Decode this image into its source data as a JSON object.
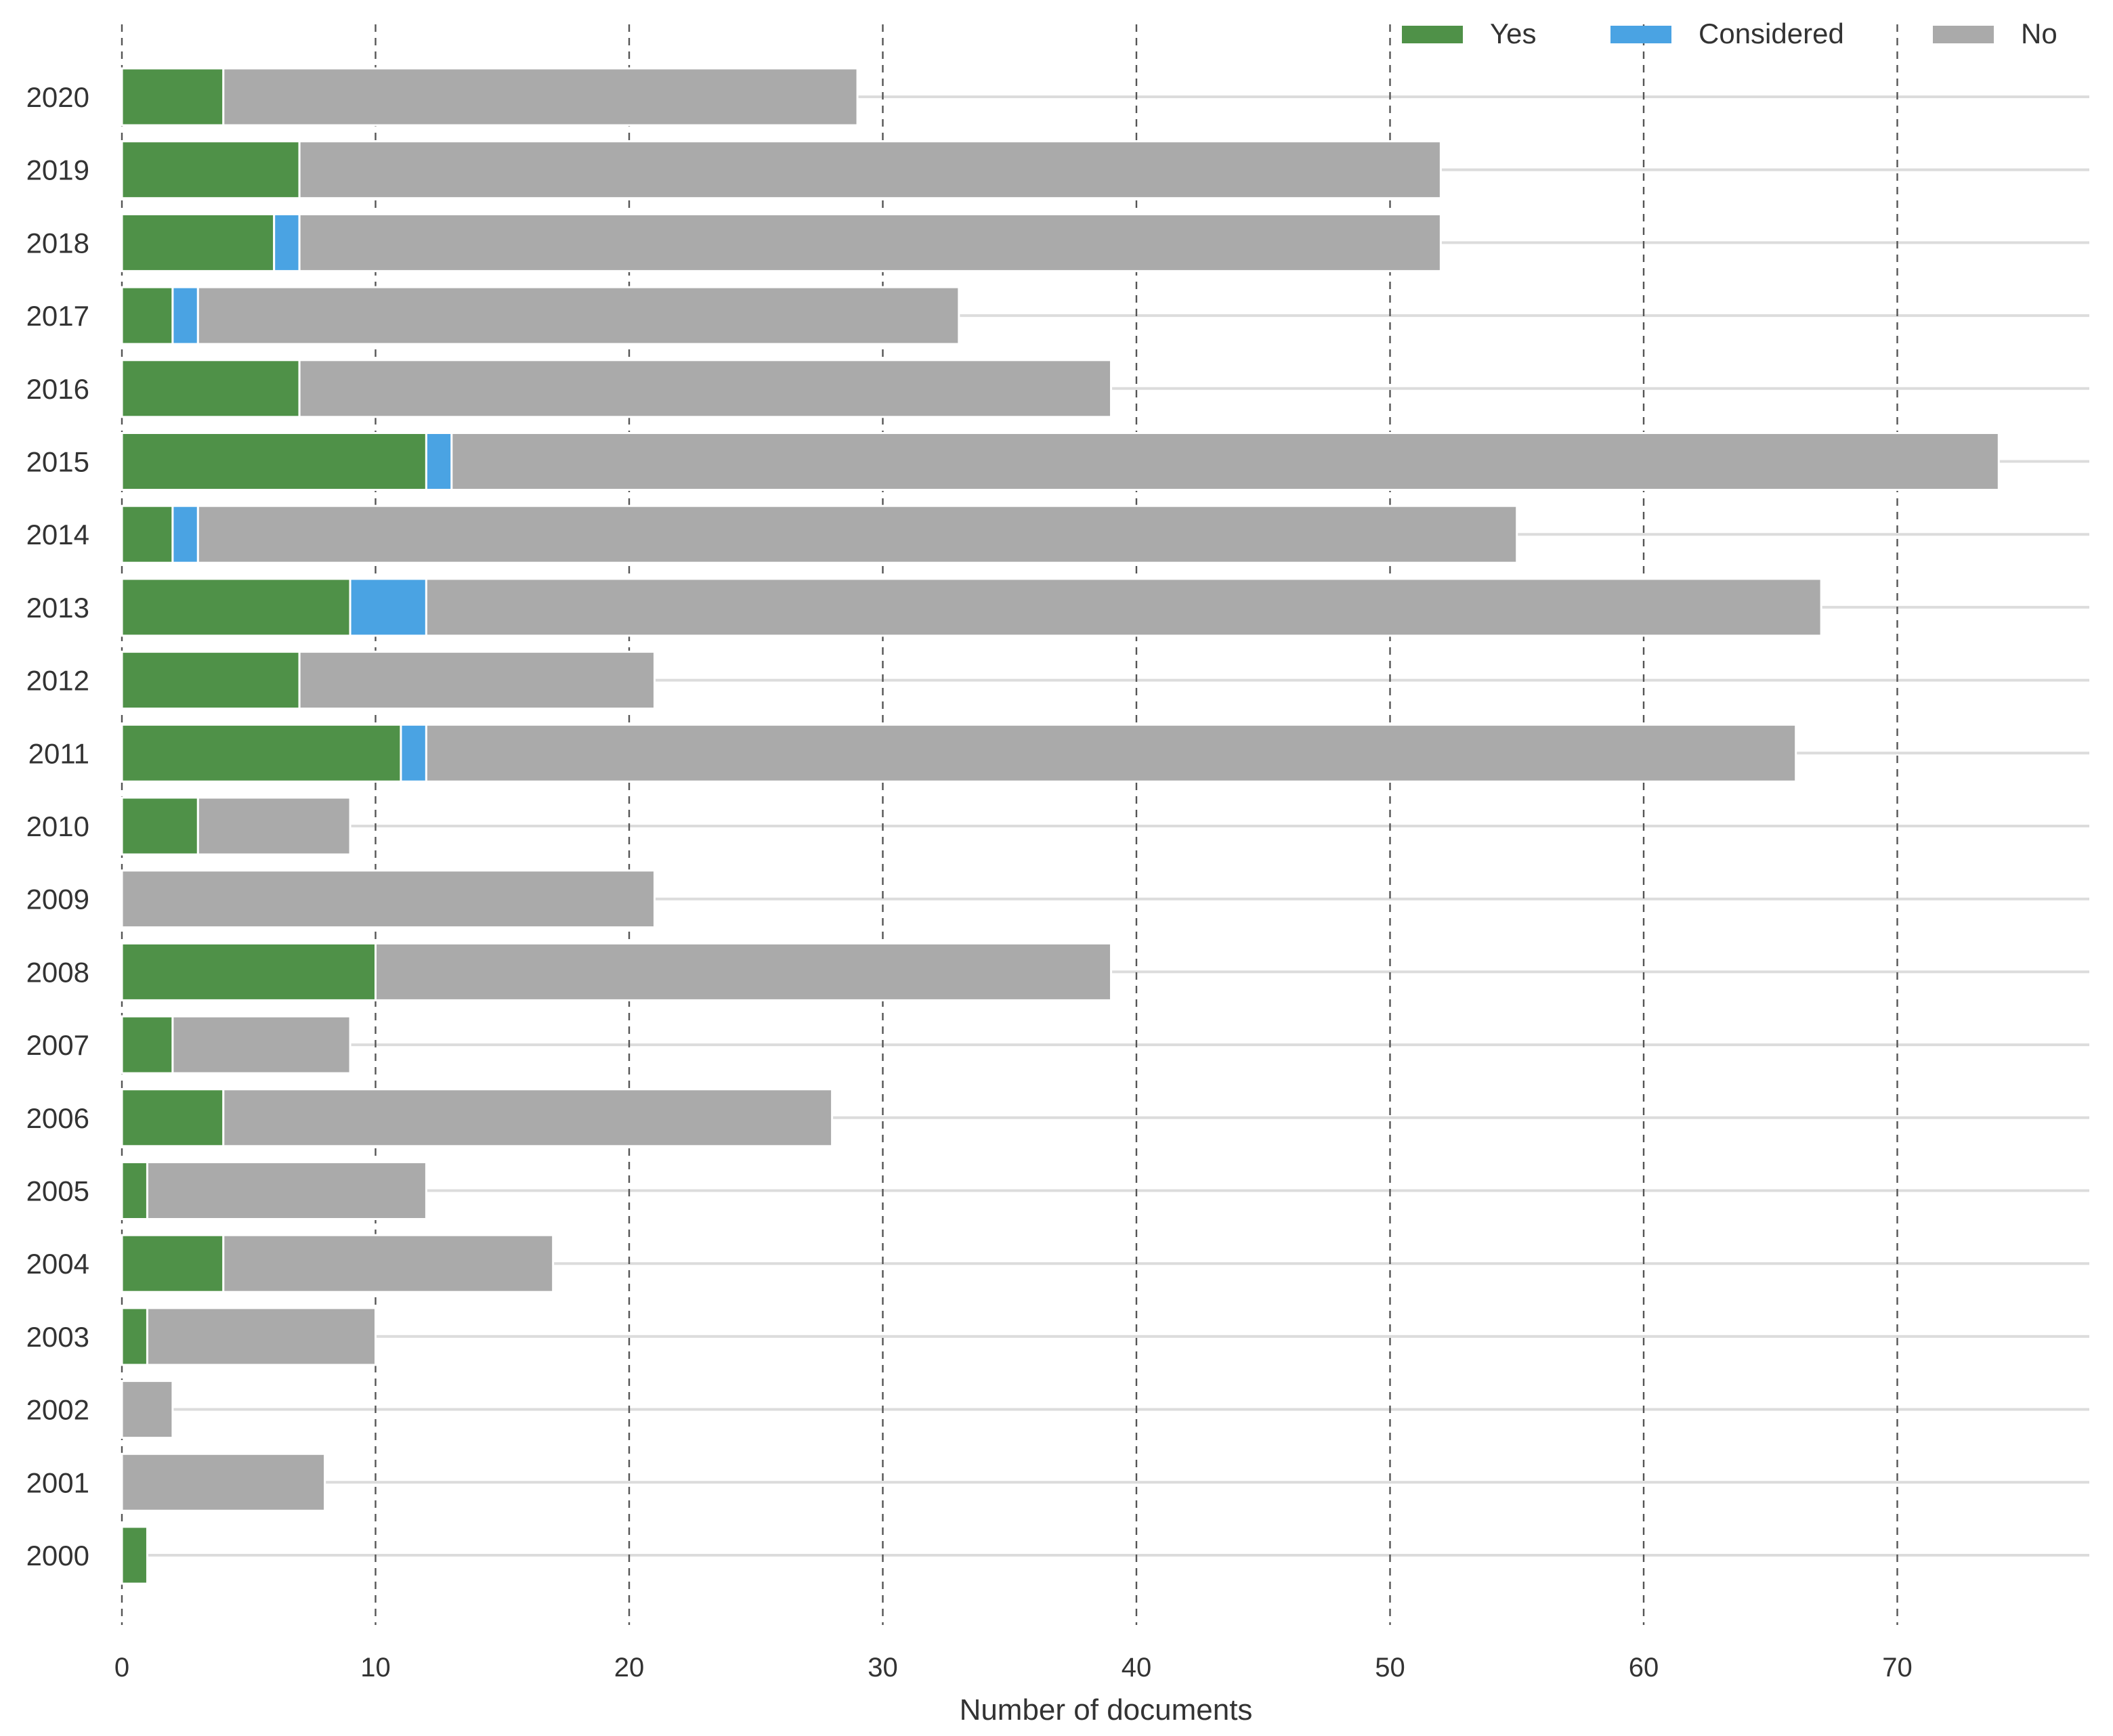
{
  "chart_data": {
    "type": "bar",
    "orientation": "horizontal",
    "stacked": true,
    "title": "",
    "xlabel": "Number of documents",
    "ylabel": "",
    "xlim": [
      0,
      78
    ],
    "xticks": [
      0,
      10,
      20,
      30,
      40,
      50,
      60,
      70
    ],
    "grid": "x-dashed",
    "legend_position": "top-right",
    "categories": [
      "2020",
      "2019",
      "2018",
      "2017",
      "2016",
      "2015",
      "2014",
      "2013",
      "2012",
      "2011",
      "2010",
      "2009",
      "2008",
      "2007",
      "2006",
      "2005",
      "2004",
      "2003",
      "2002",
      "2001",
      "2000"
    ],
    "series": [
      {
        "name": "Yes",
        "color": "#4f9148",
        "values": [
          4,
          7,
          6,
          2,
          7,
          12,
          2,
          9,
          7,
          11,
          3,
          0,
          10,
          2,
          4,
          1,
          4,
          1,
          0,
          0,
          1
        ]
      },
      {
        "name": "Considered",
        "color": "#4aa3e3",
        "values": [
          0,
          0,
          1,
          1,
          0,
          1,
          1,
          3,
          0,
          1,
          0,
          0,
          0,
          0,
          0,
          0,
          0,
          0,
          0,
          0,
          0
        ]
      },
      {
        "name": "No",
        "color": "#aaaaaa",
        "values": [
          25,
          45,
          45,
          30,
          32,
          61,
          52,
          55,
          14,
          54,
          6,
          21,
          29,
          7,
          24,
          11,
          13,
          9,
          2,
          8,
          0
        ]
      }
    ]
  }
}
